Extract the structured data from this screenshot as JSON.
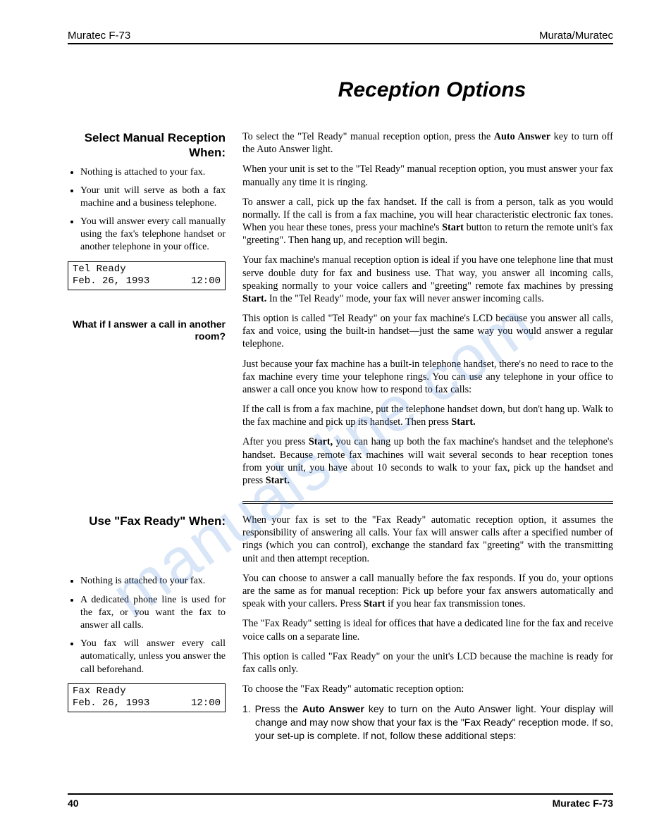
{
  "header": {
    "left": "Muratec F-73",
    "right": "Murata/Muratec"
  },
  "title": "Reception Options",
  "watermark": "manualsline.com",
  "section1": {
    "side_heading": "Select Manual Reception When:",
    "bullets": [
      "Nothing is attached to your fax.",
      "Your unit will serve as both a fax machine and a business telephone.",
      "You will answer every call manually using the fax's telephone handset or another telephone in your office."
    ],
    "lcd": {
      "line1": "Tel Ready",
      "date": "Feb. 26, 1993",
      "time": "12:00"
    },
    "side_sub": "What if I answer a call in another room?",
    "paras": [
      "To select the \"Tel Ready\" manual reception option, press the <b>Auto Answer</b> key to turn off the Auto Answer light.",
      "When your unit is set to the \"Tel Ready\" manual reception option, you must answer your fax manually any time it is ringing.",
      "To answer a call, pick up the fax handset. If the call is from a person, talk as you would normally. If the call is from a fax machine, you will hear characteristic electronic fax tones. When you hear these tones, press your machine's <b>Start</b> button to return the remote unit's fax \"greeting\". Then hang up, and reception will begin.",
      "Your fax machine's manual reception option is ideal if you have one telephone line that must serve double duty for fax and business use. That way, you answer all incoming calls, speaking normally to your voice callers and \"greeting\" remote fax machines by pressing <b>Start.</b> In the \"Tel Ready\" mode, your fax will never answer incoming calls.",
      "This option is called \"Tel Ready\" on your fax machine's LCD because you answer all calls, fax and voice, using the built-in handset—just the same way you would answer a regular telephone.",
      "Just because your fax machine has a built-in telephone handset, there's no need to race to the fax machine every time your telephone rings. You can use any telephone in your office to answer a call once you know how to respond to fax calls:",
      "If the call is from a fax machine, put the telephone handset down, but don't hang up. Walk to the fax machine and pick up its handset. Then press <b>Start.</b>",
      "After you press <b>Start,</b> you can hang up both the fax machine's handset and the telephone's handset. Because remote fax machines will wait several seconds to hear reception tones from your unit, you have about 10 seconds to walk to your fax, pick up the handset and press <b>Start.</b>"
    ]
  },
  "section2": {
    "side_heading": "Use \"Fax Ready\" When:",
    "bullets": [
      "Nothing is attached to your fax.",
      "A dedicated phone line is used for the fax, or you want the fax to answer all calls.",
      "You fax will answer every call automatically, unless you answer the call beforehand."
    ],
    "lcd": {
      "line1": "Fax Ready",
      "date": "Feb. 26, 1993",
      "time": "12:00"
    },
    "paras": [
      "When your fax is set to the \"Fax Ready\" automatic reception option, it assumes the responsibility of answering all calls. Your fax will answer calls after a specified number of rings (which you can control), exchange the standard fax \"greeting\" with the transmitting unit and then attempt reception.",
      "You can choose to answer a call manually before the fax responds. If you do, your options are the same as for manual reception: Pick up before your fax answers automatically and speak with your callers. Press <b>Start</b> if you hear fax transmission tones.",
      "The \"Fax Ready\" setting is ideal for offices that have a dedicated line for the fax and receive voice calls on a separate line.",
      "This option is called \"Fax Ready\" on your the unit's LCD because the machine is ready for fax calls only.",
      "To choose the \"Fax Ready\" automatic reception option:"
    ],
    "step": "1. Press the <b>Auto Answer</b> key to turn on the Auto Answer light. Your display will change and may now show that your fax is the \"Fax Ready\" reception mode. If so, your set-up is complete. If not, follow these additional steps:"
  },
  "footer": {
    "page": "40",
    "model": "Muratec F-73"
  }
}
